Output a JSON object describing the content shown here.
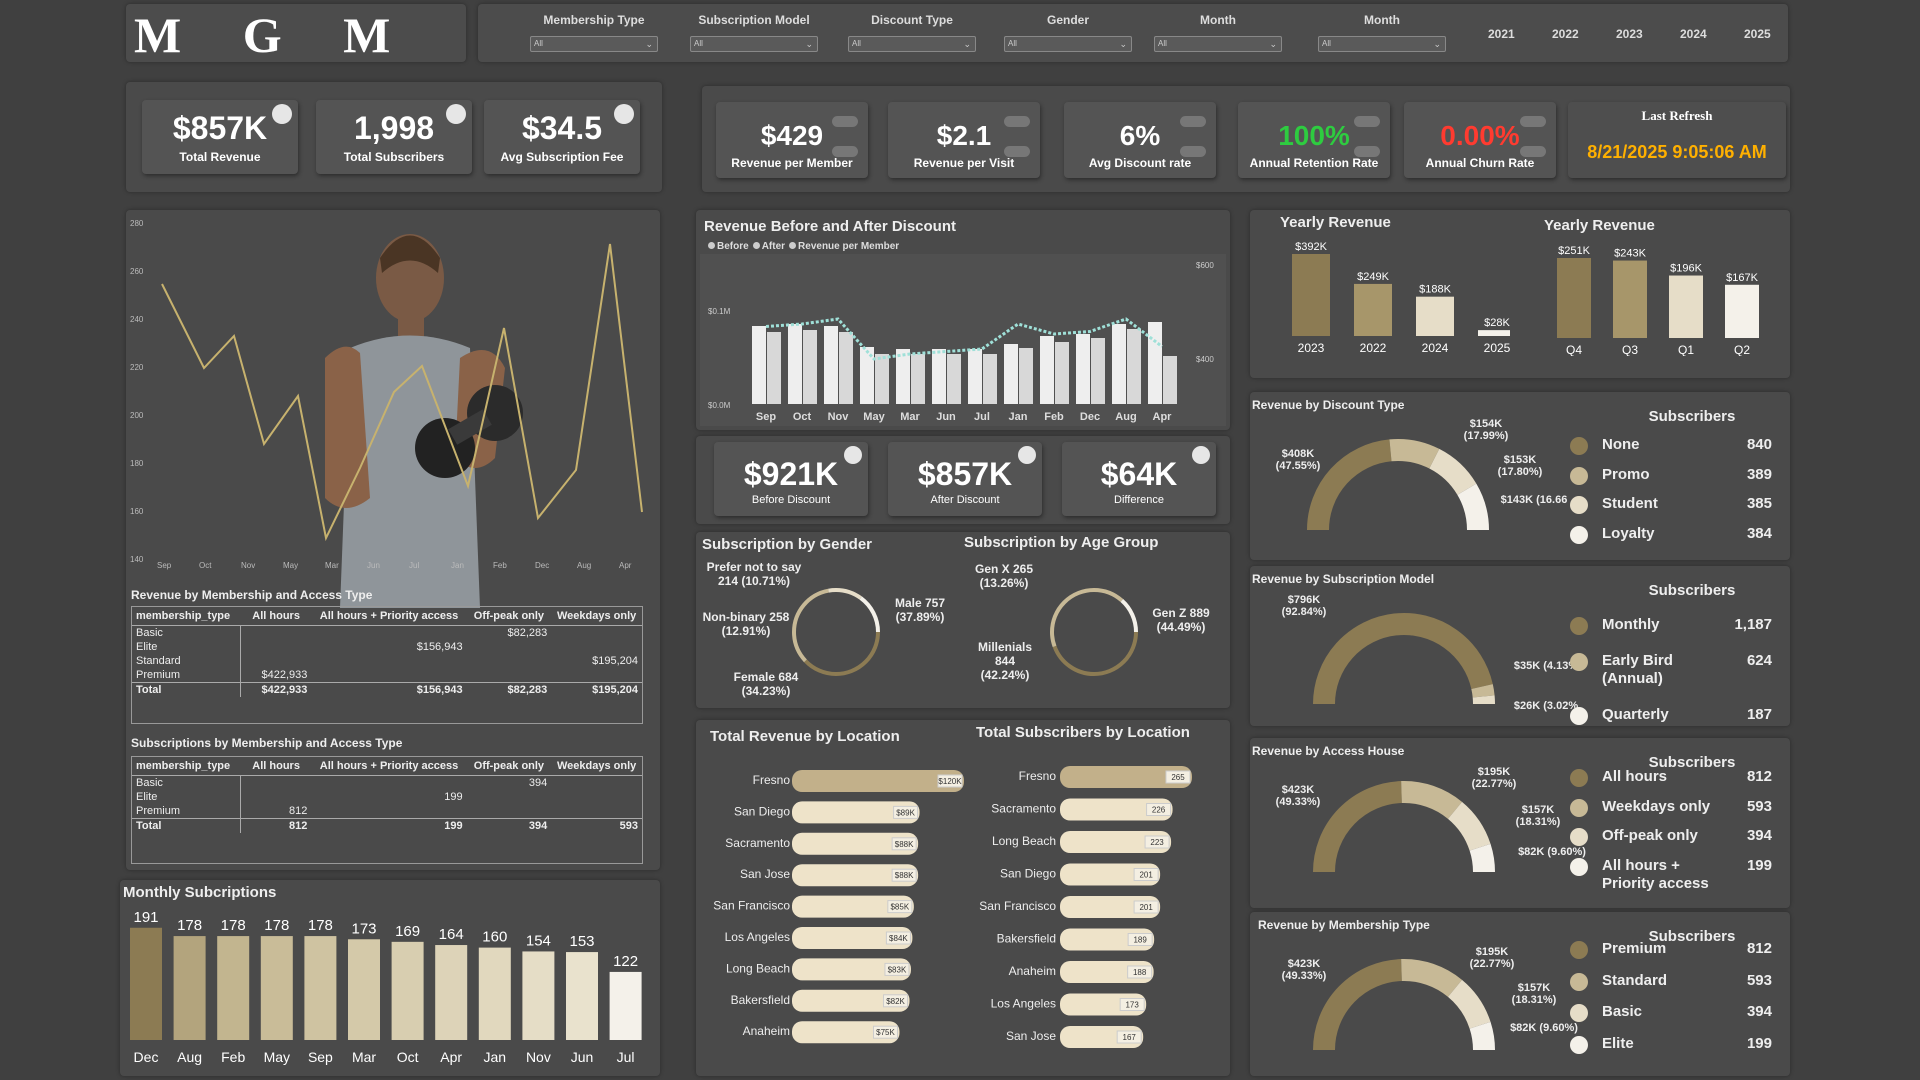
{
  "logo": {
    "text": "M   G   M"
  },
  "filters": [
    {
      "label": "Membership Type",
      "value": "All"
    },
    {
      "label": "Subscription Model",
      "value": "All"
    },
    {
      "label": "Discount Type",
      "value": "All"
    },
    {
      "label": "Gender",
      "value": "All"
    },
    {
      "label": "Month",
      "value": "All"
    },
    {
      "label": "Month",
      "value": "All"
    }
  ],
  "years": [
    "2021",
    "2022",
    "2023",
    "2024",
    "2025"
  ],
  "kpi_left": [
    {
      "value": "$857K",
      "label": "Total Revenue"
    },
    {
      "value": "1,998",
      "label": "Total Subscribers"
    },
    {
      "value": "$34.5",
      "label": "Avg Subscription Fee"
    }
  ],
  "kpi_right": [
    {
      "value": "$429",
      "label": "Revenue per Member",
      "color": "#ffffff"
    },
    {
      "value": "$2.1",
      "label": "Revenue per Visit",
      "color": "#ffffff"
    },
    {
      "value": "6%",
      "label": "Avg Discount rate",
      "color": "#ffffff"
    },
    {
      "value": "100%",
      "label": "Annual Retention Rate",
      "color": "#2ecc40"
    },
    {
      "value": "0.00%",
      "label": "Annual Churn Rate",
      "color": "#ff3b30"
    }
  ],
  "last_refresh": {
    "label": "Last Refresh",
    "value": "8/21/2025 9:05:06 AM",
    "color": "#ffb000"
  },
  "line_chart": {
    "yticks": [
      "280",
      "260",
      "240",
      "220",
      "200",
      "180",
      "160",
      "140"
    ],
    "xticks": [
      "Sep",
      "Oct",
      "Nov",
      "May",
      "Mar",
      "Jun",
      "Jul",
      "Jan",
      "Feb",
      "Dec",
      "Aug",
      "Apr"
    ]
  },
  "membership_table": {
    "title": "Revenue by Membership and Access Type",
    "headers": [
      "membership_type",
      "All hours",
      "All hours + Priority access",
      "Off-peak only",
      "Weekdays only"
    ],
    "rows": [
      [
        "Basic",
        "",
        "",
        "$82,283",
        ""
      ],
      [
        "Elite",
        "",
        "$156,943",
        "",
        ""
      ],
      [
        "Standard",
        "",
        "",
        "",
        "$195,204"
      ],
      [
        "Premium",
        "$422,933",
        "",
        "",
        ""
      ],
      [
        "Total",
        "$422,933",
        "$156,943",
        "$82,283",
        "$195,204"
      ]
    ]
  },
  "subs_table": {
    "title": "Subscriptions by Membership and Access Type",
    "headers": [
      "membership_type",
      "All hours",
      "All hours + Priority access",
      "Off-peak only",
      "Weekdays only"
    ],
    "rows": [
      [
        "Basic",
        "",
        "",
        "394",
        ""
      ],
      [
        "Elite",
        "",
        "199",
        "",
        ""
      ],
      [
        "Premium",
        "812",
        "",
        "",
        ""
      ],
      [
        "Total",
        "812",
        "199",
        "394",
        "593"
      ]
    ]
  },
  "monthly_subs": {
    "title": "Monthly Subcriptions",
    "chart_data": {
      "type": "bar",
      "categories": [
        "Dec",
        "Aug",
        "Feb",
        "May",
        "Sep",
        "Mar",
        "Oct",
        "Apr",
        "Jan",
        "Nov",
        "Jun",
        "Jul"
      ],
      "values": [
        191,
        178,
        178,
        178,
        178,
        173,
        169,
        164,
        160,
        154,
        153,
        122
      ]
    }
  },
  "rev_discount": {
    "title": "Revenue Before and After Discount",
    "legend": [
      "Before",
      "After",
      "Revenue per Member"
    ],
    "yleft": [
      "$0.1M",
      "$0.0M"
    ],
    "yright": [
      "$600",
      "$400"
    ],
    "chart_data": {
      "type": "bar",
      "categories": [
        "Sep",
        "Oct",
        "Nov",
        "May",
        "Mar",
        "Jun",
        "Jul",
        "Jan",
        "Feb",
        "Dec",
        "Aug",
        "Apr"
      ],
      "series": [
        {
          "name": "Before",
          "values": [
            78,
            80,
            78,
            57,
            55,
            55,
            55,
            60,
            68,
            70,
            80,
            82
          ]
        },
        {
          "name": "After",
          "values": [
            72,
            74,
            72,
            50,
            50,
            50,
            50,
            56,
            62,
            66,
            75,
            48
          ]
        },
        {
          "name": "Revenue per Member",
          "values": [
            455,
            460,
            470,
            390,
            400,
            405,
            410,
            460,
            440,
            445,
            470,
            415
          ]
        }
      ]
    }
  },
  "disc_kpis": [
    {
      "value": "$921K",
      "label": "Before Discount"
    },
    {
      "value": "$857K",
      "label": "After Discount"
    },
    {
      "value": "$64K",
      "label": "Difference"
    }
  ],
  "yearly1": {
    "title": "Yearly Revenue",
    "chart_data": {
      "type": "bar",
      "categories": [
        "2023",
        "2022",
        "2024",
        "2025"
      ],
      "values": [
        392,
        249,
        188,
        28
      ],
      "labels": [
        "$392K",
        "$249K",
        "$188K",
        "$28K"
      ]
    }
  },
  "yearly2": {
    "title": "Yearly Revenue",
    "chart_data": {
      "type": "bar",
      "categories": [
        "Q4",
        "Q3",
        "Q1",
        "Q2"
      ],
      "values": [
        251,
        243,
        196,
        167
      ],
      "labels": [
        "$251K",
        "$243K",
        "$196K",
        "$167K"
      ]
    }
  },
  "gender": {
    "title": "Subscription by Gender",
    "labels": [
      "Prefer not to say 214 (10.71%)",
      "Non-binary 258 (12.91%)",
      "Female 684 (34.23%)",
      "Male 757 (37.89%)"
    ]
  },
  "age": {
    "title": "Subscription by Age Group",
    "labels": [
      "Gen X 265 (13.26%)",
      "Millenials 844 (42.24%)",
      "Gen Z 889 (44.49%)"
    ]
  },
  "rev_location": {
    "title": "Total Revenue by Location",
    "chart_data": {
      "type": "bar",
      "categories": [
        "Fresno",
        "San Diego",
        "Sacramento",
        "San Jose",
        "San Francisco",
        "Los Angeles",
        "Long Beach",
        "Bakersfield",
        "Anaheim"
      ],
      "values": [
        120,
        89,
        88,
        88,
        85,
        84,
        83,
        82,
        75
      ],
      "labels": [
        "$120K",
        "$89K",
        "$88K",
        "$88K",
        "$85K",
        "$84K",
        "$83K",
        "$82K",
        "$75K"
      ]
    }
  },
  "subs_location": {
    "title": "Total Subscribers by Location",
    "chart_data": {
      "type": "bar",
      "categories": [
        "Fresno",
        "Sacramento",
        "Long Beach",
        "San Diego",
        "San Francisco",
        "Bakersfield",
        "Anaheim",
        "Los Angeles",
        "San Jose"
      ],
      "values": [
        265,
        226,
        223,
        201,
        201,
        189,
        188,
        173,
        167
      ],
      "labels": [
        "265",
        "226",
        "223",
        "201",
        "201",
        "189",
        "188",
        "173",
        "167"
      ]
    }
  },
  "sub_header": "Subscribers",
  "gauge_discount": {
    "title": "Revenue by Discount Type",
    "labels": [
      "$408K (47.55%)",
      "$154K (17.99%)",
      "$153K (17.80%)",
      "$143K (16.66"
    ],
    "rows": [
      {
        "name": "None",
        "value": "840",
        "color": "#8c7b53"
      },
      {
        "name": "Promo",
        "value": "389",
        "color": "#c7b996"
      },
      {
        "name": "Student",
        "value": "385",
        "color": "#e6ddc8"
      },
      {
        "name": "Loyalty",
        "value": "384",
        "color": "#f4f1ea"
      }
    ]
  },
  "gauge_model": {
    "title": "Revenue by Subscription Model",
    "labels": [
      "$796K (92.84%)",
      "$35K (4.13%",
      "$26K (3.02%"
    ],
    "rows": [
      {
        "name": "Monthly",
        "value": "1,187",
        "color": "#8c7b53"
      },
      {
        "name": "Early Bird (Annual)",
        "value": "624",
        "color": "#c7b996"
      },
      {
        "name": "Quarterly",
        "value": "187",
        "color": "#f4f1ea"
      }
    ]
  },
  "gauge_access": {
    "title": "Revenue by Access House",
    "labels": [
      "$423K (49.33%)",
      "$195K (22.77%)",
      "$157K (18.31%)",
      "$82K (9.60%)"
    ],
    "rows": [
      {
        "name": "All hours",
        "value": "812",
        "color": "#8c7b53"
      },
      {
        "name": "Weekdays only",
        "value": "593",
        "color": "#c7b996"
      },
      {
        "name": "Off-peak only",
        "value": "394",
        "color": "#e6ddc8"
      },
      {
        "name": "All hours + Priority access",
        "value": "199",
        "color": "#f4f1ea"
      }
    ]
  },
  "gauge_membership": {
    "title": "Revenue by Membership Type",
    "labels": [
      "$423K (49.33%)",
      "$195K (22.77%)",
      "$157K (18.31%)",
      "$82K (9.60%)"
    ],
    "rows": [
      {
        "name": "Premium",
        "value": "812",
        "color": "#8c7b53"
      },
      {
        "name": "Standard",
        "value": "593",
        "color": "#c7b996"
      },
      {
        "name": "Basic",
        "value": "394",
        "color": "#e6ddc8"
      },
      {
        "name": "Elite",
        "value": "199",
        "color": "#f4f1ea"
      }
    ]
  }
}
